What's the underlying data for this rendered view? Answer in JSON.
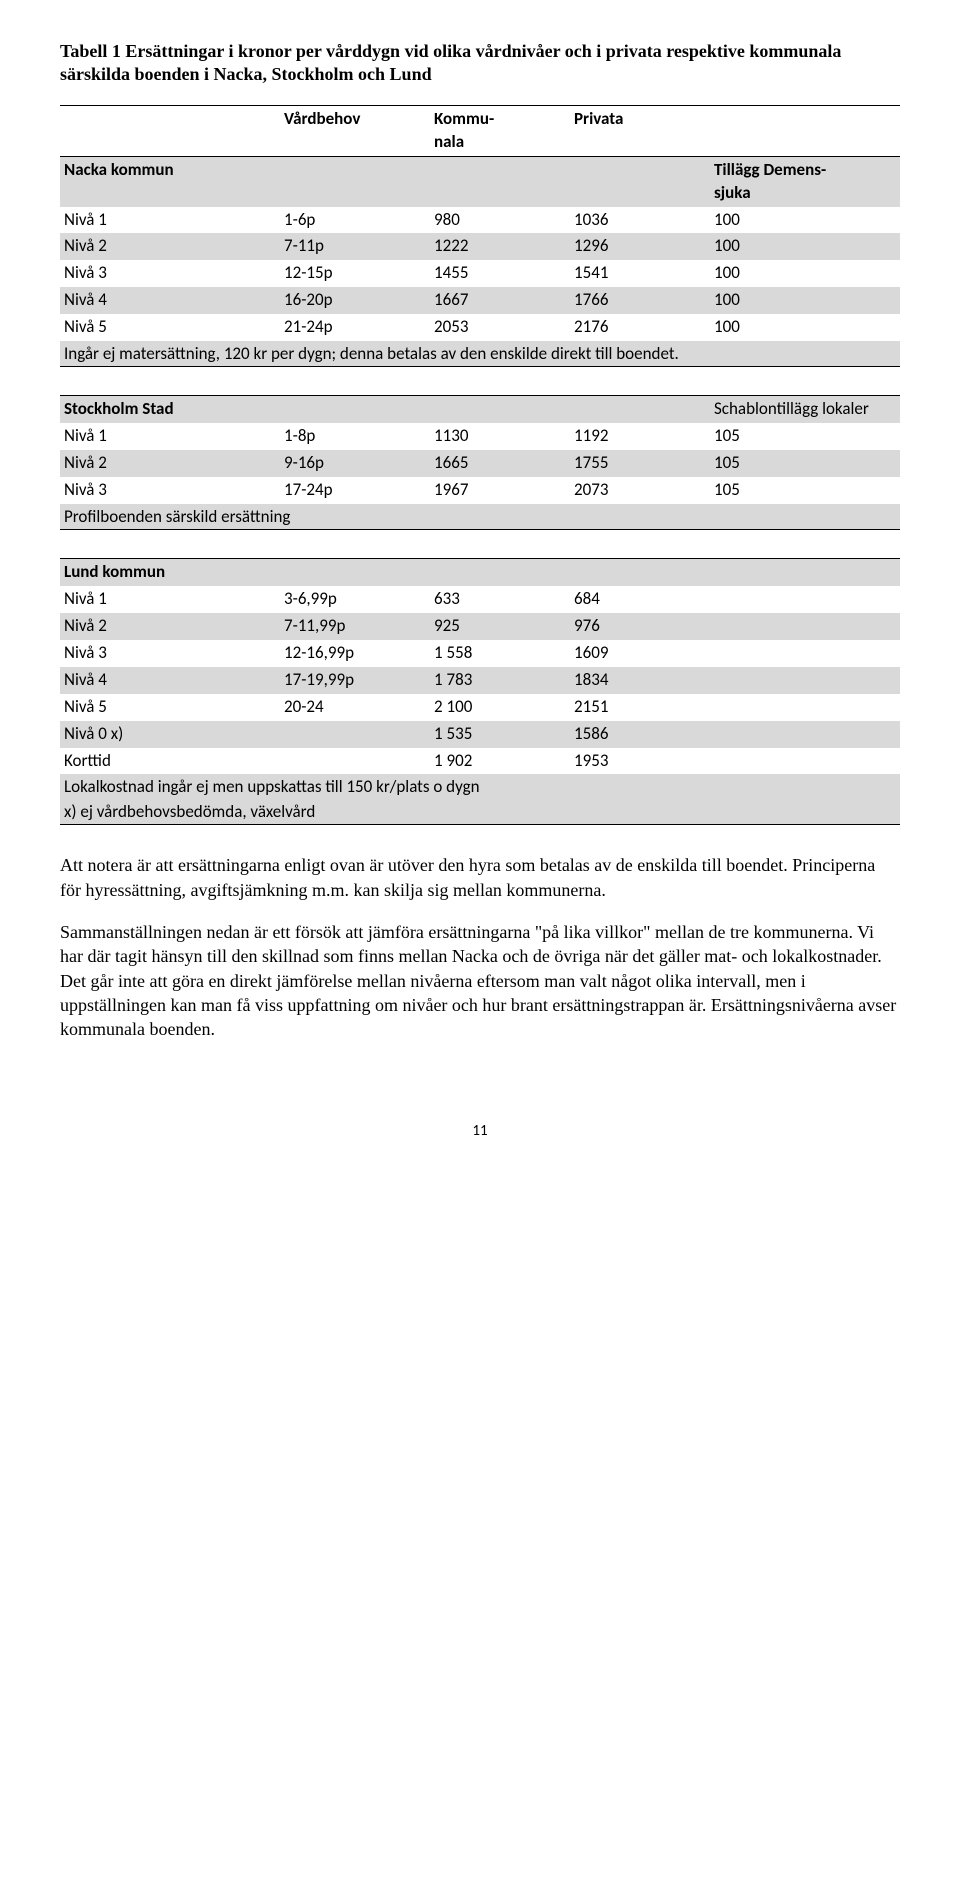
{
  "title": "Tabell 1 Ersättningar i kronor per vårddygn vid olika vårdnivåer och i privata respektive kommunala särskilda boenden i Nacka, Stockholm och Lund",
  "colors": {
    "row_gray": "#d9d9d9",
    "text": "#000000",
    "background": "#ffffff"
  },
  "typography": {
    "title_font": "Times New Roman",
    "table_font": "Calibri",
    "body_font": "Times New Roman",
    "title_size_pt": 13,
    "table_size_pt": 12,
    "body_size_pt": 13
  },
  "header": {
    "c2": "Vårdbehov",
    "c3": "Kommu-\nnala",
    "c4": "Privata"
  },
  "nacka": {
    "title": "Nacka kommun",
    "c5": "Tillägg Demens-\nsjuka",
    "rows": [
      {
        "lvl": "Nivå 1",
        "need": "1-6p",
        "kom": "980",
        "priv": "1036",
        "add": "100"
      },
      {
        "lvl": "Nivå 2",
        "need": "7-11p",
        "kom": "1222",
        "priv": "1296",
        "add": "100"
      },
      {
        "lvl": "Nivå 3",
        "need": "12-15p",
        "kom": "1455",
        "priv": "1541",
        "add": "100"
      },
      {
        "lvl": "Nivå 4",
        "need": "16-20p",
        "kom": "1667",
        "priv": "1766",
        "add": "100"
      },
      {
        "lvl": "Nivå 5",
        "need": "21-24p",
        "kom": "2053",
        "priv": "2176",
        "add": "100"
      }
    ],
    "note": "Ingår ej matersättning, 120 kr per dygn; denna betalas av den enskilde direkt till boendet."
  },
  "stockholm": {
    "title": "Stockholm Stad",
    "c5": "Schablontillägg lokaler",
    "rows": [
      {
        "lvl": "Nivå 1",
        "need": "1-8p",
        "kom": "1130",
        "priv": "1192",
        "add": "105"
      },
      {
        "lvl": "Nivå 2",
        "need": "9-16p",
        "kom": "1665",
        "priv": "1755",
        "add": "105"
      },
      {
        "lvl": "Nivå 3",
        "need": "17-24p",
        "kom": "1967",
        "priv": "2073",
        "add": "105"
      }
    ],
    "note": "Profilboenden särskild ersättning"
  },
  "lund": {
    "title": "Lund kommun",
    "rows": [
      {
        "lvl": "Nivå 1",
        "need": "3-6,99p",
        "kom": "633",
        "priv": "684"
      },
      {
        "lvl": "Nivå 2",
        "need": "7-11,99p",
        "kom": "925",
        "priv": "976"
      },
      {
        "lvl": "Nivå 3",
        "need": "12-16,99p",
        "kom": "1 558",
        "priv": "1609"
      },
      {
        "lvl": "Nivå 4",
        "need": "17-19,99p",
        "kom": "1 783",
        "priv": "1834"
      },
      {
        "lvl": "Nivå 5",
        "need": "20-24",
        "kom": "2 100",
        "priv": "2151"
      },
      {
        "lvl": "Nivå 0 x)",
        "need": "",
        "kom": "1 535",
        "priv": "1586"
      },
      {
        "lvl": "Korttid",
        "need": "",
        "kom": "1 902",
        "priv": "1953"
      }
    ],
    "note1": "Lokalkostnad ingår ej men uppskattas till 150 kr/plats o dygn",
    "note2": "x) ej vårdbehovsbedömda, växelvård"
  },
  "paragraphs": {
    "p1": "Att notera är att ersättningarna enligt ovan är utöver den hyra som betalas av de enskilda till boendet. Principerna för hyressättning, avgiftsjämkning m.m. kan skilja sig mellan kommunerna.",
    "p2": "Sammanställningen nedan är ett försök att jämföra ersättningarna \"på lika villkor\" mellan de tre kommunerna. Vi har där tagit hänsyn till den skillnad som finns mellan Nacka och de övriga när det gäller mat- och lokalkostnader. Det går inte att göra en direkt jämförelse mellan nivåerna eftersom man valt något olika intervall, men i uppställningen kan man få viss uppfattning om nivåer och hur brant ersättningstrappan är. Ersättningsnivåerna avser kommunala boenden."
  },
  "pagenum": "11"
}
